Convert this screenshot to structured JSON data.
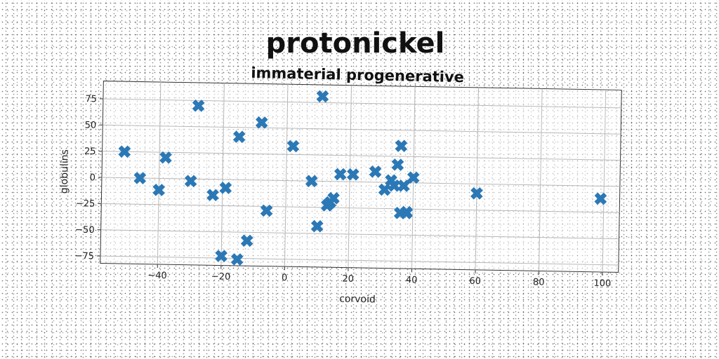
{
  "chart_data": {
    "type": "scatter",
    "title": "protonickel",
    "subtitle": "immaterial progenerative",
    "xlabel": "corvoid",
    "ylabel": "globulins",
    "xlim": [
      -58,
      105
    ],
    "ylim": [
      -82,
      92
    ],
    "xticks": [
      -40,
      -20,
      0,
      20,
      40,
      60,
      80,
      100
    ],
    "yticks": [
      -75,
      -50,
      -25,
      0,
      25,
      50,
      75
    ],
    "grid": true,
    "marker": "X",
    "marker_color": "#2b78b6",
    "x": [
      11,
      -28,
      -8,
      -15,
      2,
      -51,
      -38,
      -46,
      -40,
      -30,
      -23,
      -19,
      -6,
      -12,
      -20,
      -15,
      8,
      10,
      14,
      13,
      15,
      17,
      21,
      28,
      33,
      31,
      35,
      36,
      34,
      37,
      38,
      40,
      36,
      38,
      60,
      99
    ],
    "y": [
      81,
      70,
      55,
      41,
      33,
      25,
      20,
      0,
      -11,
      -2,
      -15,
      -8,
      -29,
      -58,
      -73,
      -76,
      0,
      -43,
      -20,
      -23,
      -16,
      7,
      7,
      10,
      2,
      -7,
      17,
      35,
      -3,
      -3,
      -28,
      5,
      -29,
      -29,
      -9,
      -12
    ]
  }
}
